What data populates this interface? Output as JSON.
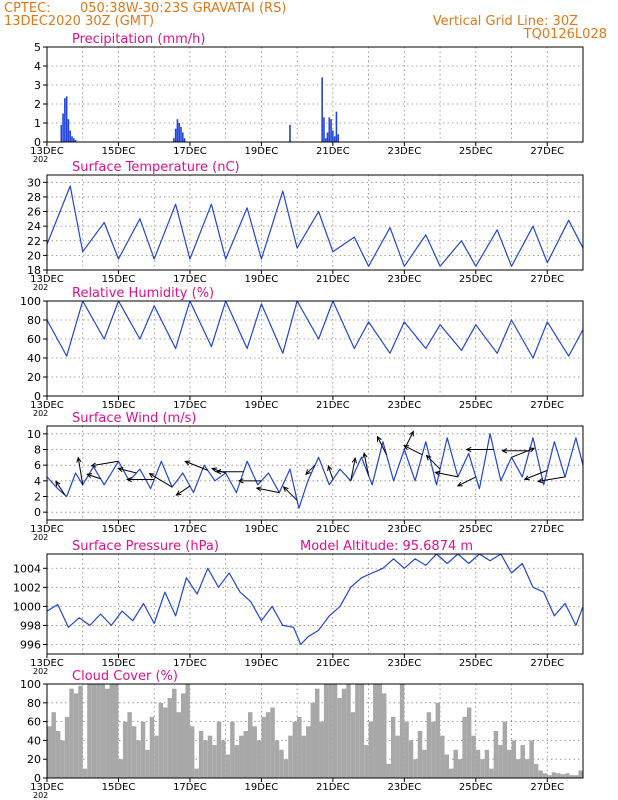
{
  "header": {
    "source": "CPTEC:",
    "location": "050:38W-30:23S   GRAVATAI (RS)",
    "init_time": "13DEC2020 30Z (GMT)",
    "grid_note": "Vertical Grid Line: 30Z",
    "code": "TQ0126L028"
  },
  "colors": {
    "header": "#e07818",
    "panel_title": "#e0108c",
    "series_line": "#2244dd",
    "cloud_bar": "#a8a8a8",
    "wind_arrow": "#000000"
  },
  "chart_data": [
    {
      "type": "bar",
      "title": "Precipitation (mm/h)",
      "xlabel": "",
      "ylabel": "",
      "x_ticks": [
        "13DEC",
        "15DEC",
        "17DEC",
        "19DEC",
        "21DEC",
        "23DEC",
        "25DEC",
        "27DEC"
      ],
      "x_tick_year": "202",
      "x_range_days": [
        0,
        15
      ],
      "ylim": [
        0,
        5
      ],
      "y_ticks": [
        0,
        1,
        2,
        3,
        4,
        5
      ],
      "grid": true,
      "x_days": [
        0.4,
        0.45,
        0.5,
        0.55,
        0.6,
        0.65,
        0.7,
        0.75,
        0.8,
        3.55,
        3.6,
        3.65,
        3.7,
        3.75,
        3.8,
        3.85,
        6.8,
        7.7,
        7.75,
        7.8,
        7.85,
        7.9,
        7.95,
        8.0,
        8.05,
        8.1,
        8.15
      ],
      "values": [
        0.9,
        1.5,
        2.3,
        2.4,
        1.2,
        0.6,
        0.3,
        0.2,
        0.1,
        0.2,
        0.7,
        1.2,
        1.0,
        0.8,
        0.5,
        0.2,
        0.9,
        3.4,
        1.3,
        0.2,
        0.5,
        1.3,
        1.2,
        0.6,
        0.3,
        1.6,
        0.4
      ]
    },
    {
      "type": "line",
      "title": "Surface Temperature (nC)",
      "xlabel": "",
      "ylabel": "",
      "x_ticks": [
        "13DEC",
        "15DEC",
        "17DEC",
        "19DEC",
        "21DEC",
        "23DEC",
        "25DEC",
        "27DEC"
      ],
      "x_tick_year": "202",
      "x_range_days": [
        0,
        15
      ],
      "ylim": [
        18,
        31
      ],
      "y_ticks": [
        18,
        20,
        22,
        24,
        26,
        28,
        30
      ],
      "grid": true,
      "min_day": [
        0.0,
        1.0,
        2.0,
        3.0,
        4.0,
        5.0,
        6.0,
        7.0,
        8.0,
        9.0,
        10.0,
        11.0,
        12.0,
        13.0,
        14.0,
        15.0
      ],
      "min_values": [
        21.5,
        20.5,
        19.5,
        19.5,
        19.5,
        19.5,
        19.5,
        21.0,
        20.5,
        18.5,
        18.5,
        18.5,
        18.5,
        18.5,
        19.0,
        21.0
      ],
      "max_day": [
        0.65,
        1.6,
        2.6,
        3.6,
        4.6,
        5.6,
        6.6,
        7.6,
        8.6,
        9.6,
        10.6,
        11.6,
        12.6,
        13.6,
        14.6
      ],
      "max_values": [
        29.5,
        24.5,
        25.0,
        27.0,
        27.0,
        26.5,
        28.8,
        26.0,
        22.5,
        23.8,
        22.8,
        22.0,
        23.5,
        24.0,
        24.8
      ]
    },
    {
      "type": "line",
      "title": "Relative Humidity (%)",
      "xlabel": "",
      "ylabel": "",
      "x_ticks": [
        "13DEC",
        "15DEC",
        "17DEC",
        "19DEC",
        "21DEC",
        "23DEC",
        "25DEC",
        "27DEC"
      ],
      "x_tick_year": "202",
      "x_range_days": [
        0,
        15
      ],
      "ylim": [
        0,
        100
      ],
      "y_ticks": [
        0,
        20,
        40,
        60,
        80,
        100
      ],
      "grid": true,
      "high_day": [
        0.0,
        1.0,
        2.0,
        3.0,
        4.0,
        5.0,
        6.0,
        7.0,
        8.0,
        9.0,
        10.0,
        11.0,
        12.0,
        13.0,
        14.0,
        15.0
      ],
      "high_values": [
        80,
        100,
        100,
        95,
        100,
        100,
        97,
        100,
        100,
        78,
        78,
        75,
        75,
        80,
        78,
        70
      ],
      "low_day": [
        0.55,
        1.6,
        2.6,
        3.6,
        4.6,
        5.6,
        6.6,
        7.6,
        8.6,
        9.6,
        10.6,
        11.6,
        12.6,
        13.6,
        14.6
      ],
      "low_values": [
        42,
        60,
        60,
        50,
        52,
        50,
        45,
        60,
        50,
        45,
        50,
        48,
        45,
        40,
        42
      ]
    },
    {
      "type": "line",
      "title": "Surface Wind (m/s)",
      "xlabel": "",
      "ylabel": "",
      "x_ticks": [
        "13DEC",
        "15DEC",
        "17DEC",
        "19DEC",
        "21DEC",
        "23DEC",
        "25DEC",
        "27DEC"
      ],
      "x_tick_year": "202",
      "x_range_days": [
        0,
        15
      ],
      "ylim": [
        -1,
        11
      ],
      "y_ticks": [
        0,
        2,
        4,
        6,
        8,
        10
      ],
      "grid": true,
      "series": [
        {
          "x": [
            0.0,
            0.3,
            0.55,
            0.8,
            1.0,
            1.3,
            1.6,
            2.0,
            2.3,
            2.6,
            2.9,
            3.2,
            3.5,
            3.8,
            4.1,
            4.4,
            4.7,
            5.0,
            5.3,
            5.6,
            5.9,
            6.2,
            6.5,
            6.8,
            7.05,
            7.3,
            7.6,
            7.9,
            8.2,
            8.5,
            8.8,
            9.1,
            9.4,
            9.7,
            10.0,
            10.3,
            10.6,
            10.9,
            11.2,
            11.5,
            11.8,
            12.1,
            12.4,
            12.7,
            13.0,
            13.3,
            13.6,
            13.9,
            14.2,
            14.5,
            14.8,
            15.0
          ],
          "values": [
            4.5,
            3.0,
            2.0,
            5.0,
            3.5,
            5.8,
            3.5,
            6.5,
            4.0,
            5.5,
            3.0,
            6.5,
            3.2,
            5.0,
            2.5,
            6.0,
            4.0,
            5.0,
            2.5,
            6.5,
            3.5,
            5.0,
            2.5,
            5.5,
            0.5,
            4.0,
            7.0,
            3.5,
            5.5,
            4.0,
            7.0,
            3.5,
            9.0,
            4.0,
            8.0,
            4.0,
            9.0,
            3.5,
            9.5,
            4.5,
            7.5,
            3.0,
            10.0,
            4.0,
            7.0,
            4.5,
            9.5,
            3.5,
            9.0,
            4.5,
            9.5,
            6.0
          ]
        }
      ],
      "wind_vectors": {
        "x_days": [
          0.5,
          1.0,
          1.5,
          2.0,
          2.5,
          3.0,
          3.5,
          4.0,
          4.5,
          5.0,
          5.5,
          6.0,
          6.5,
          7.0,
          7.5,
          8.0,
          8.5,
          9.0,
          9.5,
          10.0,
          10.5,
          11.0,
          11.5,
          12.0,
          12.5,
          13.0,
          13.5,
          14.0,
          14.5
        ],
        "u_ms": [
          -2,
          -1,
          -3,
          -6,
          -4,
          -6,
          -5,
          -3,
          -5,
          -3,
          -6,
          -5,
          -5,
          -3,
          -2,
          -1,
          1,
          -1,
          -2,
          2,
          -4,
          -3,
          -5,
          -4,
          -6,
          5,
          -6,
          -5,
          -6
        ],
        "v_ms": [
          3,
          6,
          1,
          -1,
          1,
          0,
          3,
          -2,
          2,
          1,
          0,
          0,
          1,
          3,
          -2,
          3,
          5,
          5,
          4,
          4,
          2,
          3,
          1,
          -2,
          0,
          2,
          0,
          -2,
          -1
        ]
      }
    },
    {
      "type": "line",
      "title": "Surface Pressure (hPa)",
      "subtitle": "Model Altitude: 95.6874 m",
      "xlabel": "",
      "ylabel": "",
      "x_ticks": [
        "13DEC",
        "15DEC",
        "17DEC",
        "19DEC",
        "21DEC",
        "23DEC",
        "25DEC",
        "27DEC"
      ],
      "x_tick_year": "202",
      "x_range_days": [
        0,
        15
      ],
      "ylim": [
        995,
        1005.5
      ],
      "y_ticks": [
        996,
        998,
        1000,
        1002,
        1004
      ],
      "grid": true,
      "series": [
        {
          "x": [
            0.0,
            0.3,
            0.6,
            0.9,
            1.2,
            1.5,
            1.8,
            2.1,
            2.4,
            2.7,
            3.0,
            3.3,
            3.6,
            3.9,
            4.2,
            4.5,
            4.8,
            5.1,
            5.4,
            5.7,
            6.0,
            6.3,
            6.6,
            6.9,
            7.1,
            7.3,
            7.6,
            7.9,
            8.2,
            8.5,
            8.8,
            9.1,
            9.4,
            9.7,
            10.0,
            10.3,
            10.6,
            10.9,
            11.2,
            11.5,
            11.8,
            12.1,
            12.4,
            12.7,
            13.0,
            13.3,
            13.6,
            13.9,
            14.2,
            14.5,
            14.8,
            15.0
          ],
          "values": [
            999.5,
            1000.2,
            997.8,
            998.8,
            998.0,
            999.2,
            998.0,
            999.5,
            998.5,
            1000.3,
            998.2,
            1001.5,
            999.0,
            1003.0,
            1001.3,
            1004.0,
            1002.0,
            1003.5,
            1001.5,
            1000.5,
            998.5,
            1000.0,
            998.0,
            997.8,
            996.0,
            996.8,
            997.5,
            999.0,
            1000.0,
            1002.0,
            1003.0,
            1003.5,
            1004.0,
            1005.0,
            1004.0,
            1005.0,
            1004.3,
            1005.5,
            1004.5,
            1005.5,
            1004.5,
            1005.5,
            1004.8,
            1005.5,
            1003.5,
            1004.5,
            1002.0,
            1001.5,
            999.0,
            1000.3,
            998.0,
            1000.0
          ]
        }
      ]
    },
    {
      "type": "bar",
      "title": "Cloud Cover (%)",
      "xlabel": "",
      "ylabel": "",
      "x_ticks": [
        "13DEC",
        "15DEC",
        "17DEC",
        "19DEC",
        "21DEC",
        "23DEC",
        "25DEC",
        "27DEC"
      ],
      "x_tick_year": "202",
      "x_range_days": [
        0,
        15
      ],
      "ylim": [
        0,
        100
      ],
      "y_ticks": [
        0,
        20,
        40,
        60,
        80,
        100
      ],
      "grid": true,
      "hour_step": 3,
      "values": [
        55,
        70,
        50,
        40,
        65,
        95,
        90,
        98,
        10,
        100,
        100,
        100,
        100,
        95,
        100,
        100,
        20,
        60,
        70,
        55,
        40,
        60,
        30,
        65,
        45,
        80,
        75,
        85,
        95,
        70,
        90,
        100,
        55,
        10,
        50,
        40,
        45,
        35,
        60,
        40,
        25,
        60,
        35,
        45,
        50,
        70,
        55,
        40,
        65,
        70,
        75,
        40,
        30,
        20,
        45,
        60,
        65,
        45,
        55,
        80,
        95,
        60,
        100,
        100,
        100,
        85,
        95,
        100,
        70,
        100,
        100,
        35,
        60,
        100,
        100,
        90,
        15,
        65,
        45,
        100,
        60,
        40,
        20,
        50,
        30,
        70,
        60,
        80,
        45,
        25,
        10,
        30,
        20,
        65,
        75,
        45,
        30,
        20,
        30,
        10,
        50,
        35,
        60,
        30,
        40,
        20,
        35,
        20,
        40,
        15,
        8,
        5,
        3,
        6,
        5,
        4,
        5,
        3,
        3,
        8,
        4,
        5
      ]
    }
  ]
}
